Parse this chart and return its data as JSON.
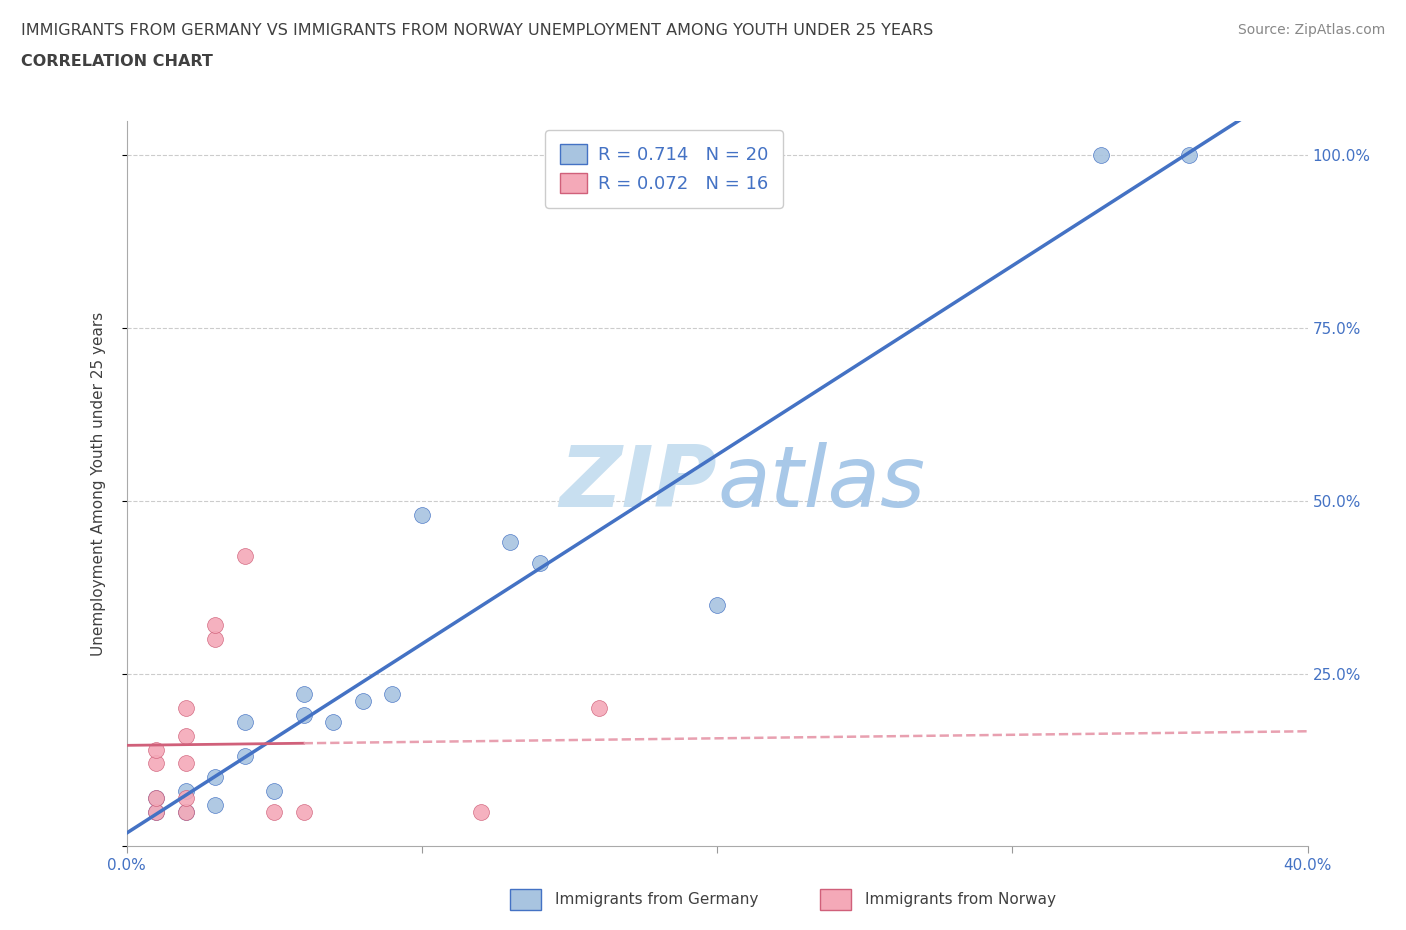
{
  "title_line1": "IMMIGRANTS FROM GERMANY VS IMMIGRANTS FROM NORWAY UNEMPLOYMENT AMONG YOUTH UNDER 25 YEARS",
  "title_line2": "CORRELATION CHART",
  "source": "Source: ZipAtlas.com",
  "xlabel": "",
  "ylabel": "Unemployment Among Youth under 25 years",
  "watermark": "ZIPatlas",
  "xlim": [
    0.0,
    0.4
  ],
  "ylim": [
    0.0,
    1.05
  ],
  "xticks": [
    0.0,
    0.1,
    0.2,
    0.3,
    0.4
  ],
  "xticklabels": [
    "0.0%",
    "",
    "",
    "",
    "40.0%"
  ],
  "yticks": [
    0.0,
    0.25,
    0.5,
    0.75,
    1.0
  ],
  "yticklabels": [
    "",
    "25.0%",
    "50.0%",
    "75.0%",
    "100.0%"
  ],
  "germany_x": [
    0.01,
    0.01,
    0.02,
    0.02,
    0.03,
    0.03,
    0.04,
    0.04,
    0.05,
    0.06,
    0.06,
    0.07,
    0.08,
    0.09,
    0.1,
    0.13,
    0.14,
    0.2,
    0.33,
    0.36
  ],
  "germany_y": [
    0.05,
    0.07,
    0.05,
    0.08,
    0.06,
    0.1,
    0.13,
    0.18,
    0.08,
    0.19,
    0.22,
    0.18,
    0.21,
    0.22,
    0.48,
    0.44,
    0.41,
    0.35,
    1.0,
    1.0
  ],
  "norway_x": [
    0.01,
    0.01,
    0.01,
    0.01,
    0.02,
    0.02,
    0.02,
    0.02,
    0.02,
    0.03,
    0.03,
    0.04,
    0.05,
    0.06,
    0.12,
    0.16
  ],
  "norway_y": [
    0.05,
    0.07,
    0.12,
    0.14,
    0.05,
    0.07,
    0.12,
    0.16,
    0.2,
    0.3,
    0.32,
    0.42,
    0.05,
    0.05,
    0.05,
    0.2
  ],
  "germany_color": "#a8c4e0",
  "norway_color": "#f4a9b8",
  "germany_line_color": "#4472c4",
  "norway_line_color": "#d0607a",
  "norway_line_dash_color": "#e8a0b0",
  "R_germany": 0.714,
  "N_germany": 20,
  "R_norway": 0.072,
  "N_norway": 16,
  "legend_label_germany": "Immigrants from Germany",
  "legend_label_norway": "Immigrants from Norway",
  "title_color": "#404040",
  "axis_label_color": "#4472c4",
  "tick_label_color": "#4472c4",
  "watermark_color": "#cce0f0",
  "background_color": "#ffffff",
  "grid_color": "#cccccc"
}
